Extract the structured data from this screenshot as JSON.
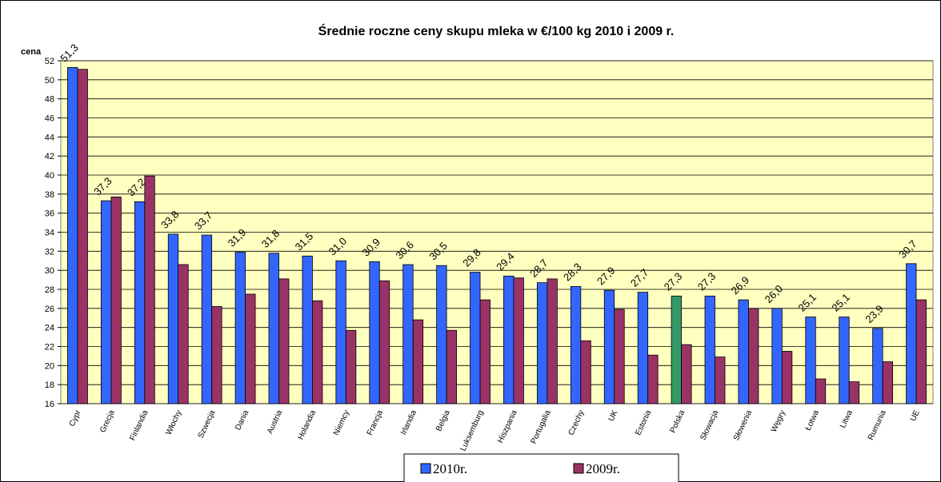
{
  "chart_data": {
    "type": "bar",
    "title": "Średnie roczne ceny skupu mleka w €/100 kg  2010 i 2009 r.",
    "y_label": "cena",
    "categories": [
      "Cypr",
      "Grecja",
      "Finlandia",
      "Włochy",
      "Szwecja",
      "Dania",
      "Austria",
      "Holandia",
      "Niemcy",
      "Francja",
      "Irlandia",
      "Belgia",
      "Luksemburg",
      "Hiszpania",
      "Portugalia",
      "Czechy",
      "UK",
      "Estonia",
      "Polska",
      "Słowacja",
      "Słowenia",
      "Węgry",
      "Łotwa",
      "Litwa",
      "Rumunia",
      "UE"
    ],
    "series": [
      {
        "name": "2010r.",
        "color": "#3366ff",
        "colors": [
          "#3366ff",
          "#3366ff",
          "#3366ff",
          "#3366ff",
          "#3366ff",
          "#3366ff",
          "#3366ff",
          "#3366ff",
          "#3366ff",
          "#3366ff",
          "#3366ff",
          "#3366ff",
          "#3366ff",
          "#3366ff",
          "#3366ff",
          "#3366ff",
          "#3366ff",
          "#3366ff",
          "#339966",
          "#3366ff",
          "#3366ff",
          "#3366ff",
          "#3366ff",
          "#3366ff",
          "#3366ff",
          "#3366ff"
        ],
        "values": [
          51.3,
          37.3,
          37.2,
          33.8,
          33.7,
          31.9,
          31.8,
          31.5,
          31.0,
          30.9,
          30.6,
          30.5,
          29.8,
          29.4,
          28.7,
          28.3,
          27.9,
          27.7,
          27.3,
          27.3,
          26.9,
          26.0,
          25.1,
          25.1,
          23.9,
          30.7
        ],
        "value_labels": [
          "51,3",
          "37,3",
          "37,2",
          "33,8",
          "33,7",
          "31,9",
          "31,8",
          "31,5",
          "31,0",
          "30,9",
          "30,6",
          "30,5",
          "29,8",
          "29,4",
          "28,7",
          "28,3",
          "27,9",
          "27,7",
          "27,3",
          "27,3",
          "26,9",
          "26,0",
          "25,1",
          "25,1",
          "23,9",
          "30,7"
        ]
      },
      {
        "name": "2009r.",
        "color": "#993366",
        "values": [
          51.1,
          37.7,
          39.9,
          30.6,
          26.2,
          27.5,
          29.1,
          26.8,
          23.7,
          28.9,
          24.8,
          23.7,
          26.9,
          29.2,
          29.1,
          22.6,
          25.9,
          21.1,
          22.2,
          20.9,
          26.0,
          21.5,
          18.6,
          18.3,
          20.4,
          26.9
        ]
      }
    ],
    "ylim": [
      16,
      52
    ],
    "yticks": [
      16,
      18,
      20,
      22,
      24,
      26,
      28,
      30,
      32,
      34,
      36,
      38,
      40,
      42,
      44,
      46,
      48,
      50,
      52
    ],
    "grid": true,
    "plot_background": "#ffffc0"
  }
}
